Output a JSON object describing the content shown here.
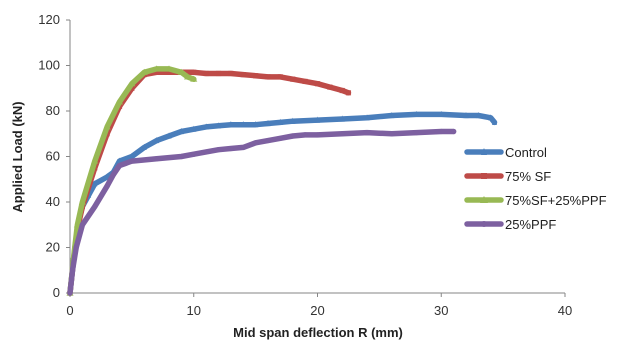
{
  "chart_data": {
    "type": "line",
    "xlabel": "Mid span deflection R (mm)",
    "ylabel": "Applied Load (kN)",
    "xlim": [
      0,
      40
    ],
    "ylim": [
      0,
      120
    ],
    "x_ticks": [
      "0",
      "10",
      "20",
      "30",
      "40"
    ],
    "y_ticks": [
      "0",
      "20",
      "40",
      "60",
      "80",
      "100",
      "120"
    ],
    "grid": false,
    "legend_position": "right",
    "series": [
      {
        "name": "Control",
        "color": "#4a7ebb",
        "marker": "star",
        "points": [
          [
            0,
            0
          ],
          [
            0.2,
            10
          ],
          [
            0.4,
            20
          ],
          [
            0.7,
            32
          ],
          [
            1,
            38
          ],
          [
            1.5,
            43
          ],
          [
            2,
            48
          ],
          [
            3,
            51
          ],
          [
            3.5,
            53
          ],
          [
            4,
            58
          ],
          [
            5,
            60
          ],
          [
            6,
            64
          ],
          [
            7,
            67
          ],
          [
            8,
            69
          ],
          [
            9,
            71
          ],
          [
            10,
            72
          ],
          [
            11,
            73
          ],
          [
            12,
            73.5
          ],
          [
            13,
            74
          ],
          [
            14,
            74
          ],
          [
            15,
            74
          ],
          [
            16,
            74.5
          ],
          [
            17,
            75
          ],
          [
            18,
            75.5
          ],
          [
            20,
            76
          ],
          [
            22,
            76.5
          ],
          [
            24,
            77
          ],
          [
            26,
            78
          ],
          [
            28,
            78.5
          ],
          [
            30,
            78.5
          ],
          [
            32,
            78
          ],
          [
            33,
            78
          ],
          [
            34,
            77
          ],
          [
            34.3,
            75
          ]
        ]
      },
      {
        "name": "75% SF",
        "color": "#be4b48",
        "marker": "square",
        "points": [
          [
            0,
            0
          ],
          [
            0.3,
            15
          ],
          [
            0.6,
            28
          ],
          [
            1,
            38
          ],
          [
            2,
            55
          ],
          [
            3,
            70
          ],
          [
            4,
            82
          ],
          [
            5,
            90
          ],
          [
            6,
            96
          ],
          [
            7,
            97
          ],
          [
            8,
            97
          ],
          [
            9,
            97
          ],
          [
            10,
            97
          ],
          [
            11,
            96.5
          ],
          [
            12,
            96.5
          ],
          [
            13,
            96.5
          ],
          [
            14,
            96
          ],
          [
            15,
            95.5
          ],
          [
            16,
            95
          ],
          [
            17,
            95
          ],
          [
            18,
            94
          ],
          [
            19,
            93
          ],
          [
            20,
            92
          ],
          [
            21,
            90.5
          ],
          [
            22,
            89
          ],
          [
            22.5,
            88
          ]
        ]
      },
      {
        "name": "75%SF+25%PPF",
        "color": "#98b954",
        "marker": "triangle",
        "points": [
          [
            0,
            0
          ],
          [
            0.3,
            16
          ],
          [
            0.6,
            30
          ],
          [
            1,
            40
          ],
          [
            2,
            58
          ],
          [
            3,
            73
          ],
          [
            4,
            84
          ],
          [
            5,
            92
          ],
          [
            6,
            97
          ],
          [
            7,
            98.5
          ],
          [
            8,
            98.5
          ],
          [
            9,
            97
          ],
          [
            9.5,
            95
          ],
          [
            10,
            94
          ]
        ]
      },
      {
        "name": "25%PPF",
        "color": "#7d60a0",
        "marker": "circle",
        "points": [
          [
            0,
            0
          ],
          [
            0.2,
            10
          ],
          [
            0.5,
            20
          ],
          [
            1,
            30
          ],
          [
            2,
            38
          ],
          [
            3,
            47
          ],
          [
            3.5,
            52
          ],
          [
            4,
            56
          ],
          [
            5,
            58
          ],
          [
            7,
            59
          ],
          [
            9,
            60
          ],
          [
            10,
            61
          ],
          [
            11,
            62
          ],
          [
            12,
            63
          ],
          [
            13,
            63.5
          ],
          [
            14,
            64
          ],
          [
            15,
            66
          ],
          [
            16,
            67
          ],
          [
            17,
            68
          ],
          [
            18,
            69
          ],
          [
            19,
            69.5
          ],
          [
            20,
            69.5
          ],
          [
            22,
            70
          ],
          [
            24,
            70.5
          ],
          [
            26,
            70
          ],
          [
            28,
            70.5
          ],
          [
            30,
            71
          ],
          [
            31,
            71
          ]
        ]
      }
    ]
  }
}
